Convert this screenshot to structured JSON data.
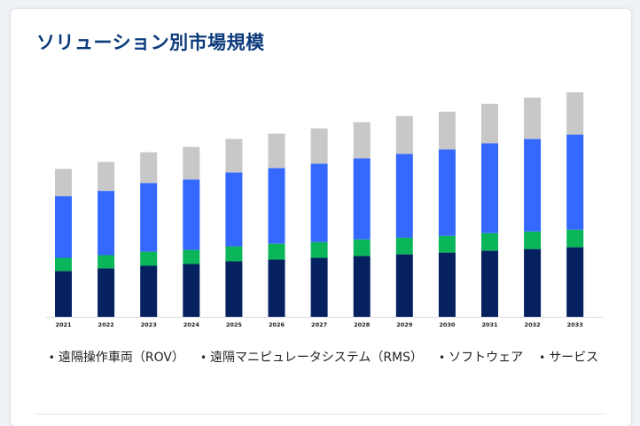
{
  "page": {
    "title": "ソリューション別市場規模"
  },
  "chart_data": {
    "type": "bar",
    "stacked": true,
    "categories": [
      "2021",
      "2022",
      "2023",
      "2024",
      "2025",
      "2026",
      "2027",
      "2028",
      "2029",
      "2030",
      "2031",
      "2032",
      "2033"
    ],
    "series": [
      {
        "name": "遠隔操作車両（ROV）",
        "color": "#052160",
        "values": [
          52,
          55,
          58,
          60,
          63,
          65,
          67,
          69,
          71,
          73,
          75,
          77,
          79
        ]
      },
      {
        "name": "遠隔マニピュレータシステム（RMS）",
        "color": "#0bb559",
        "values": [
          15,
          15,
          16,
          16,
          17,
          18,
          18,
          19,
          19,
          19,
          20,
          20,
          20
        ]
      },
      {
        "name": "ソフトウェア",
        "color": "#3468ff",
        "values": [
          70,
          73,
          78,
          80,
          84,
          86,
          89,
          92,
          95,
          98,
          102,
          105,
          108
        ]
      },
      {
        "name": "サービス",
        "color": "#c8c8c8",
        "values": [
          31,
          33,
          35,
          37,
          38,
          39,
          40,
          41,
          43,
          43,
          45,
          47,
          48
        ]
      }
    ],
    "grid": false,
    "legend_position": "bottom"
  },
  "legend": {
    "items": [
      {
        "label": "遠隔操作車両（ROV）"
      },
      {
        "label": "遠隔マニピュレータシステム（RMS）"
      },
      {
        "label": "ソフトウェア"
      },
      {
        "label": "サービス"
      }
    ]
  }
}
